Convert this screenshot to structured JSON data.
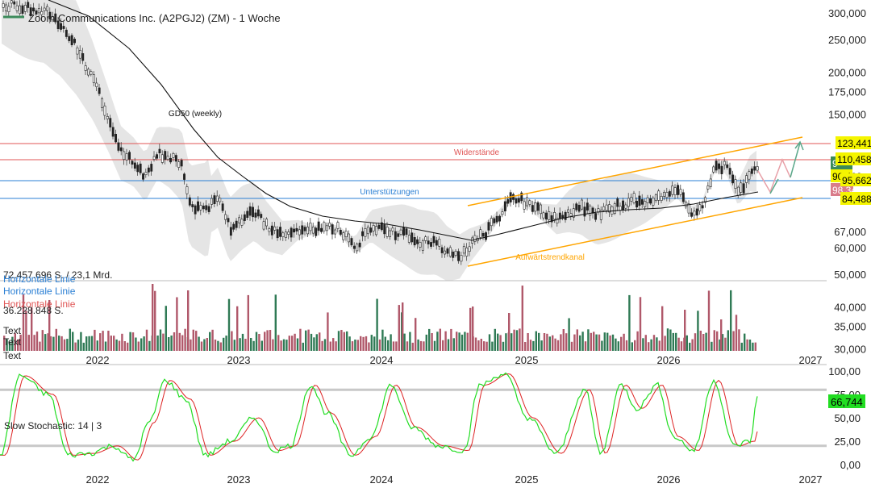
{
  "chart_data": {
    "type": "candlestick",
    "title": "Zoom Communications Inc. (A2PGJ2) (ZM) - 1 Woche",
    "price_axis": {
      "scale": "log",
      "ticks": [
        300000,
        250000,
        200000,
        175000,
        150000,
        67000,
        60000,
        50000,
        40000,
        35000,
        30000
      ],
      "tick_labels": [
        "300,000",
        "250,000",
        "200,000",
        "175,000",
        "150,000",
        "67,000",
        "60,000",
        "50,000",
        "40,000",
        "35,000",
        "30,000"
      ]
    },
    "time_axis": {
      "labels": [
        "2022",
        "2023",
        "2024",
        "2025",
        "2026",
        "2027"
      ]
    },
    "price_labels": [
      {
        "text": "123,441",
        "color": "#f5f500"
      },
      {
        "text": "110,458",
        "color": "#f5f500"
      },
      {
        "text": "95,662",
        "color": "#f5f500"
      },
      {
        "text": "84,488",
        "color": "#f5f500"
      },
      {
        "text": "9",
        "color": "#3b8a5a"
      },
      {
        "text": "90,408",
        "color": "#f5f500"
      },
      {
        "text": "98,349",
        "color": "#d97c8a"
      }
    ],
    "annotations": {
      "resistance_label": "Widerstände",
      "support_label": "Unterstützungen",
      "channel_label": "Aufwärtstrendkanal",
      "ma_label": "GD50 (weekly)"
    },
    "legend_lines": [
      {
        "text": "72.457.696 S. / 23,1 Mrd.",
        "color": "#222222"
      },
      {
        "text": "Horizontale Linie",
        "color": "#2a7fd4"
      },
      {
        "text": "Horizontale Linie",
        "color": "#2a7fd4"
      },
      {
        "text": "Horizontale Linie",
        "color": "#e05555"
      },
      {
        "text": "36.228.848 S.",
        "color": "#222222"
      },
      {
        "text": "Text",
        "color": "#222222"
      },
      {
        "text": "Text",
        "color": "#222222"
      },
      {
        "text": "Text",
        "color": "#222222"
      }
    ],
    "stochastic": {
      "label": "Slow Stochastic: 14 | 3",
      "ticks": [
        100,
        75,
        50,
        25,
        0
      ],
      "tick_labels": [
        "100,00",
        "75,00",
        "50,00",
        "25,00",
        "0,00"
      ],
      "overbought": 80,
      "oversold": 20,
      "current_label": "66,744",
      "k_color": "#22dd22",
      "d_color": "#dd2222"
    },
    "colors": {
      "up": "#2f7a55",
      "down": "#b0586a",
      "resistance": "#e05555",
      "support": "#2a7fd4",
      "channel": "#ffa500",
      "ma": "#111111",
      "band": "#e2e2e2"
    }
  }
}
